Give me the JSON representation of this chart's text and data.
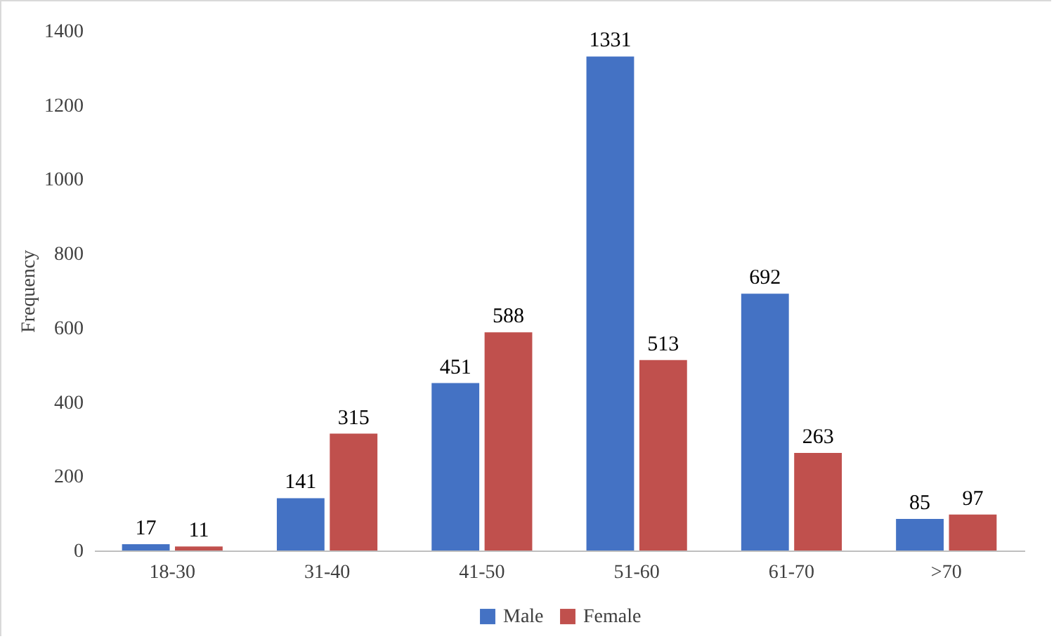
{
  "chart_data": {
    "type": "bar",
    "ylabel": "Frequency",
    "categories": [
      "18-30",
      "31-40",
      "41-50",
      "51-60",
      "61-70",
      ">70"
    ],
    "series": [
      {
        "name": "Male",
        "color": "#4472c4",
        "values": [
          17,
          141,
          451,
          1331,
          692,
          85
        ]
      },
      {
        "name": "Female",
        "color": "#c0504d",
        "values": [
          11,
          315,
          588,
          513,
          263,
          97
        ]
      }
    ],
    "ylim": [
      0,
      1400
    ],
    "yticks": [
      0,
      200,
      400,
      600,
      800,
      1000,
      1200,
      1400
    ],
    "grid": false,
    "legend": "bottom",
    "data_labels": true
  }
}
